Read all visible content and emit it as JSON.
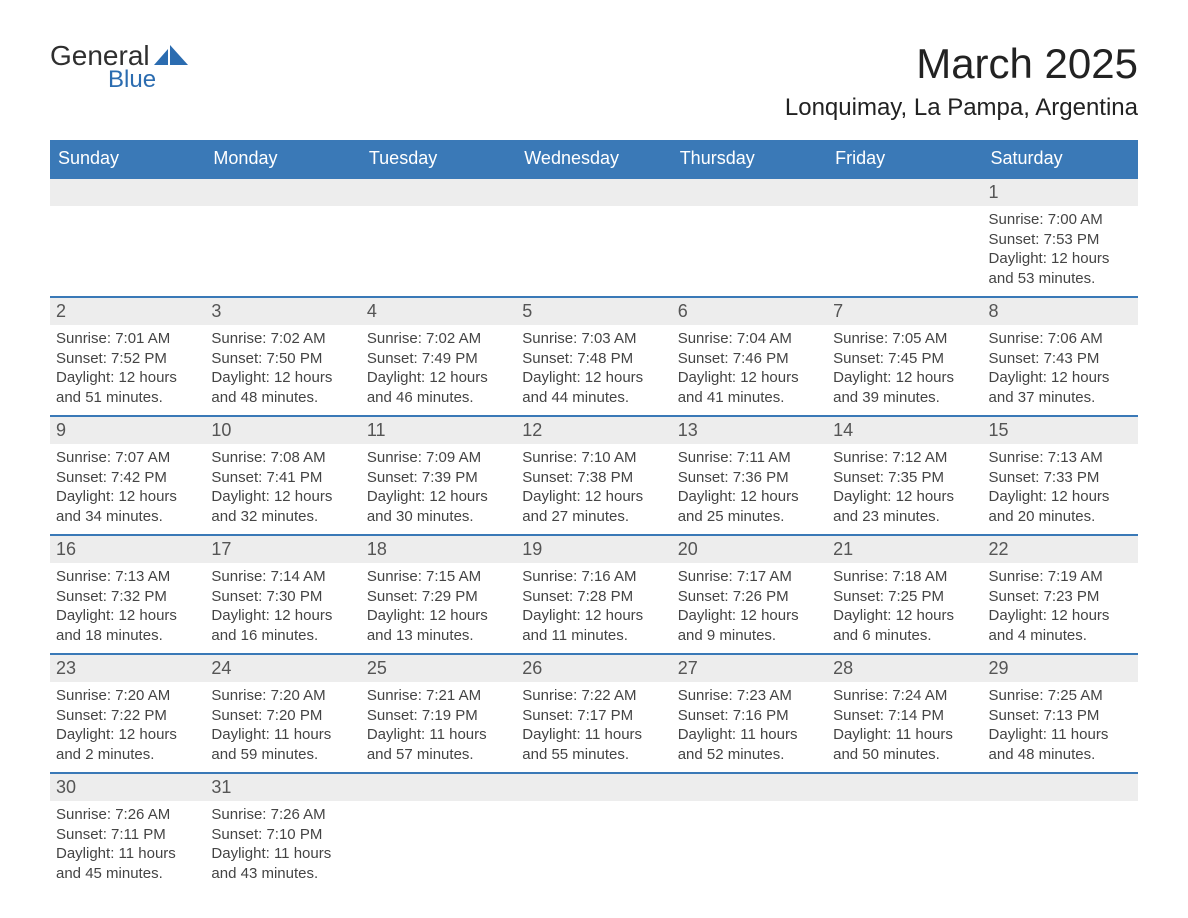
{
  "branding": {
    "logo_text_1": "General",
    "logo_text_2": "Blue",
    "logo_color": "#2b6cb0"
  },
  "header": {
    "month_title": "March 2025",
    "location": "Lonquimay, La Pampa, Argentina"
  },
  "styling": {
    "header_bg": "#3a79b7",
    "header_text": "#ffffff",
    "daynum_bg": "#ededed",
    "border_color": "#3a79b7",
    "body_text_color": "#444444",
    "font_family": "Arial",
    "month_title_fontsize": 42,
    "location_fontsize": 24,
    "th_fontsize": 18,
    "daynum_fontsize": 18,
    "body_fontsize": 15
  },
  "weekdays": [
    "Sunday",
    "Monday",
    "Tuesday",
    "Wednesday",
    "Thursday",
    "Friday",
    "Saturday"
  ],
  "labels": {
    "sunrise": "Sunrise:",
    "sunset": "Sunset:",
    "daylight": "Daylight:"
  },
  "weeks": [
    [
      null,
      null,
      null,
      null,
      null,
      null,
      {
        "n": "1",
        "sr": "7:00 AM",
        "ss": "7:53 PM",
        "dl": "12 hours and 53 minutes."
      }
    ],
    [
      {
        "n": "2",
        "sr": "7:01 AM",
        "ss": "7:52 PM",
        "dl": "12 hours and 51 minutes."
      },
      {
        "n": "3",
        "sr": "7:02 AM",
        "ss": "7:50 PM",
        "dl": "12 hours and 48 minutes."
      },
      {
        "n": "4",
        "sr": "7:02 AM",
        "ss": "7:49 PM",
        "dl": "12 hours and 46 minutes."
      },
      {
        "n": "5",
        "sr": "7:03 AM",
        "ss": "7:48 PM",
        "dl": "12 hours and 44 minutes."
      },
      {
        "n": "6",
        "sr": "7:04 AM",
        "ss": "7:46 PM",
        "dl": "12 hours and 41 minutes."
      },
      {
        "n": "7",
        "sr": "7:05 AM",
        "ss": "7:45 PM",
        "dl": "12 hours and 39 minutes."
      },
      {
        "n": "8",
        "sr": "7:06 AM",
        "ss": "7:43 PM",
        "dl": "12 hours and 37 minutes."
      }
    ],
    [
      {
        "n": "9",
        "sr": "7:07 AM",
        "ss": "7:42 PM",
        "dl": "12 hours and 34 minutes."
      },
      {
        "n": "10",
        "sr": "7:08 AM",
        "ss": "7:41 PM",
        "dl": "12 hours and 32 minutes."
      },
      {
        "n": "11",
        "sr": "7:09 AM",
        "ss": "7:39 PM",
        "dl": "12 hours and 30 minutes."
      },
      {
        "n": "12",
        "sr": "7:10 AM",
        "ss": "7:38 PM",
        "dl": "12 hours and 27 minutes."
      },
      {
        "n": "13",
        "sr": "7:11 AM",
        "ss": "7:36 PM",
        "dl": "12 hours and 25 minutes."
      },
      {
        "n": "14",
        "sr": "7:12 AM",
        "ss": "7:35 PM",
        "dl": "12 hours and 23 minutes."
      },
      {
        "n": "15",
        "sr": "7:13 AM",
        "ss": "7:33 PM",
        "dl": "12 hours and 20 minutes."
      }
    ],
    [
      {
        "n": "16",
        "sr": "7:13 AM",
        "ss": "7:32 PM",
        "dl": "12 hours and 18 minutes."
      },
      {
        "n": "17",
        "sr": "7:14 AM",
        "ss": "7:30 PM",
        "dl": "12 hours and 16 minutes."
      },
      {
        "n": "18",
        "sr": "7:15 AM",
        "ss": "7:29 PM",
        "dl": "12 hours and 13 minutes."
      },
      {
        "n": "19",
        "sr": "7:16 AM",
        "ss": "7:28 PM",
        "dl": "12 hours and 11 minutes."
      },
      {
        "n": "20",
        "sr": "7:17 AM",
        "ss": "7:26 PM",
        "dl": "12 hours and 9 minutes."
      },
      {
        "n": "21",
        "sr": "7:18 AM",
        "ss": "7:25 PM",
        "dl": "12 hours and 6 minutes."
      },
      {
        "n": "22",
        "sr": "7:19 AM",
        "ss": "7:23 PM",
        "dl": "12 hours and 4 minutes."
      }
    ],
    [
      {
        "n": "23",
        "sr": "7:20 AM",
        "ss": "7:22 PM",
        "dl": "12 hours and 2 minutes."
      },
      {
        "n": "24",
        "sr": "7:20 AM",
        "ss": "7:20 PM",
        "dl": "11 hours and 59 minutes."
      },
      {
        "n": "25",
        "sr": "7:21 AM",
        "ss": "7:19 PM",
        "dl": "11 hours and 57 minutes."
      },
      {
        "n": "26",
        "sr": "7:22 AM",
        "ss": "7:17 PM",
        "dl": "11 hours and 55 minutes."
      },
      {
        "n": "27",
        "sr": "7:23 AM",
        "ss": "7:16 PM",
        "dl": "11 hours and 52 minutes."
      },
      {
        "n": "28",
        "sr": "7:24 AM",
        "ss": "7:14 PM",
        "dl": "11 hours and 50 minutes."
      },
      {
        "n": "29",
        "sr": "7:25 AM",
        "ss": "7:13 PM",
        "dl": "11 hours and 48 minutes."
      }
    ],
    [
      {
        "n": "30",
        "sr": "7:26 AM",
        "ss": "7:11 PM",
        "dl": "11 hours and 45 minutes."
      },
      {
        "n": "31",
        "sr": "7:26 AM",
        "ss": "7:10 PM",
        "dl": "11 hours and 43 minutes."
      },
      null,
      null,
      null,
      null,
      null
    ]
  ]
}
